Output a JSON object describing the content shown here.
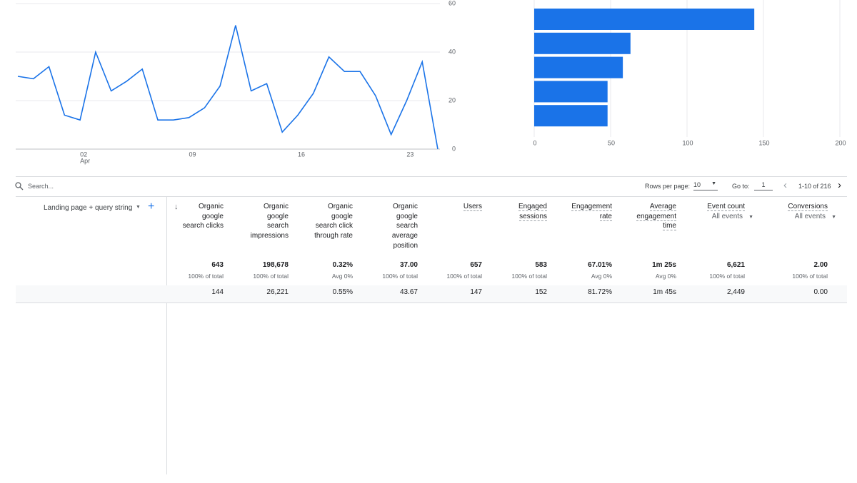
{
  "charts": [
    {
      "type": "line",
      "color": "#1a73e8",
      "categories": [
        null,
        null,
        null,
        null,
        "02",
        null,
        null,
        null,
        null,
        null,
        null,
        "09",
        null,
        null,
        null,
        null,
        null,
        null,
        "16",
        null,
        null,
        null,
        null,
        null,
        null,
        "23",
        null,
        null
      ],
      "x_month_label": "Apr",
      "values": [
        30,
        29,
        34,
        14,
        12,
        40,
        24,
        28,
        33,
        12,
        12,
        13,
        17,
        26,
        51,
        24,
        27,
        7,
        14,
        23,
        38,
        32,
        32,
        22,
        6,
        20,
        36,
        0
      ],
      "ylim": [
        0,
        60
      ],
      "yticks": [
        0,
        20,
        40,
        60
      ],
      "grid": true
    },
    {
      "type": "hbar",
      "color": "#1a73e8",
      "categories": [
        null,
        null,
        null,
        null,
        null
      ],
      "values": [
        144,
        63,
        58,
        48,
        48
      ],
      "xlim": [
        0,
        200
      ],
      "xticks": [
        0,
        50,
        100,
        150,
        200
      ],
      "grid": true
    }
  ],
  "toolbar": {
    "search_placeholder": "Search...",
    "rows_per_page_label": "Rows per page:",
    "rows_per_page": "10",
    "go_to_label": "Go to:",
    "go_to": "1",
    "range": "1-10 of 216"
  },
  "table": {
    "dimension": "Landing page + query string",
    "columns": [
      {
        "header": [
          "Organic",
          "google",
          "search clicks"
        ],
        "total": "643",
        "total_note": "100% of total",
        "row": "144"
      },
      {
        "header": [
          "Organic",
          "google",
          "search",
          "impressions"
        ],
        "total": "198,678",
        "total_note": "100% of total",
        "row": "26,221"
      },
      {
        "header": [
          "Organic",
          "google",
          "search click",
          "through rate"
        ],
        "total": "0.32%",
        "total_note": "Avg 0%",
        "row": "0.55%"
      },
      {
        "header": [
          "Organic",
          "google",
          "search",
          "average",
          "position"
        ],
        "total": "37.00",
        "total_note": "100% of total",
        "row": "43.67"
      },
      {
        "header": [
          "Users"
        ],
        "total": "657",
        "total_note": "100% of total",
        "row": "147",
        "dashed": true
      },
      {
        "header": [
          "Engaged",
          "sessions"
        ],
        "total": "583",
        "total_note": "100% of total",
        "row": "152",
        "dashed": true
      },
      {
        "header": [
          "Engagement",
          "rate"
        ],
        "total": "67.01%",
        "total_note": "Avg 0%",
        "row": "81.72%",
        "dashed": true
      },
      {
        "header": [
          "Average",
          "engagement",
          "time"
        ],
        "total": "1m 25s",
        "total_note": "Avg 0%",
        "row": "1m 45s",
        "dashed": true
      },
      {
        "header": [
          "Event count"
        ],
        "filter": "All events",
        "total": "6,621",
        "total_note": "100% of total",
        "row": "2,449",
        "dashed": true
      },
      {
        "header": [
          "Conversions"
        ],
        "filter": "All events",
        "total": "2.00",
        "total_note": "100% of total",
        "row": "0.00",
        "dashed": true
      }
    ]
  }
}
